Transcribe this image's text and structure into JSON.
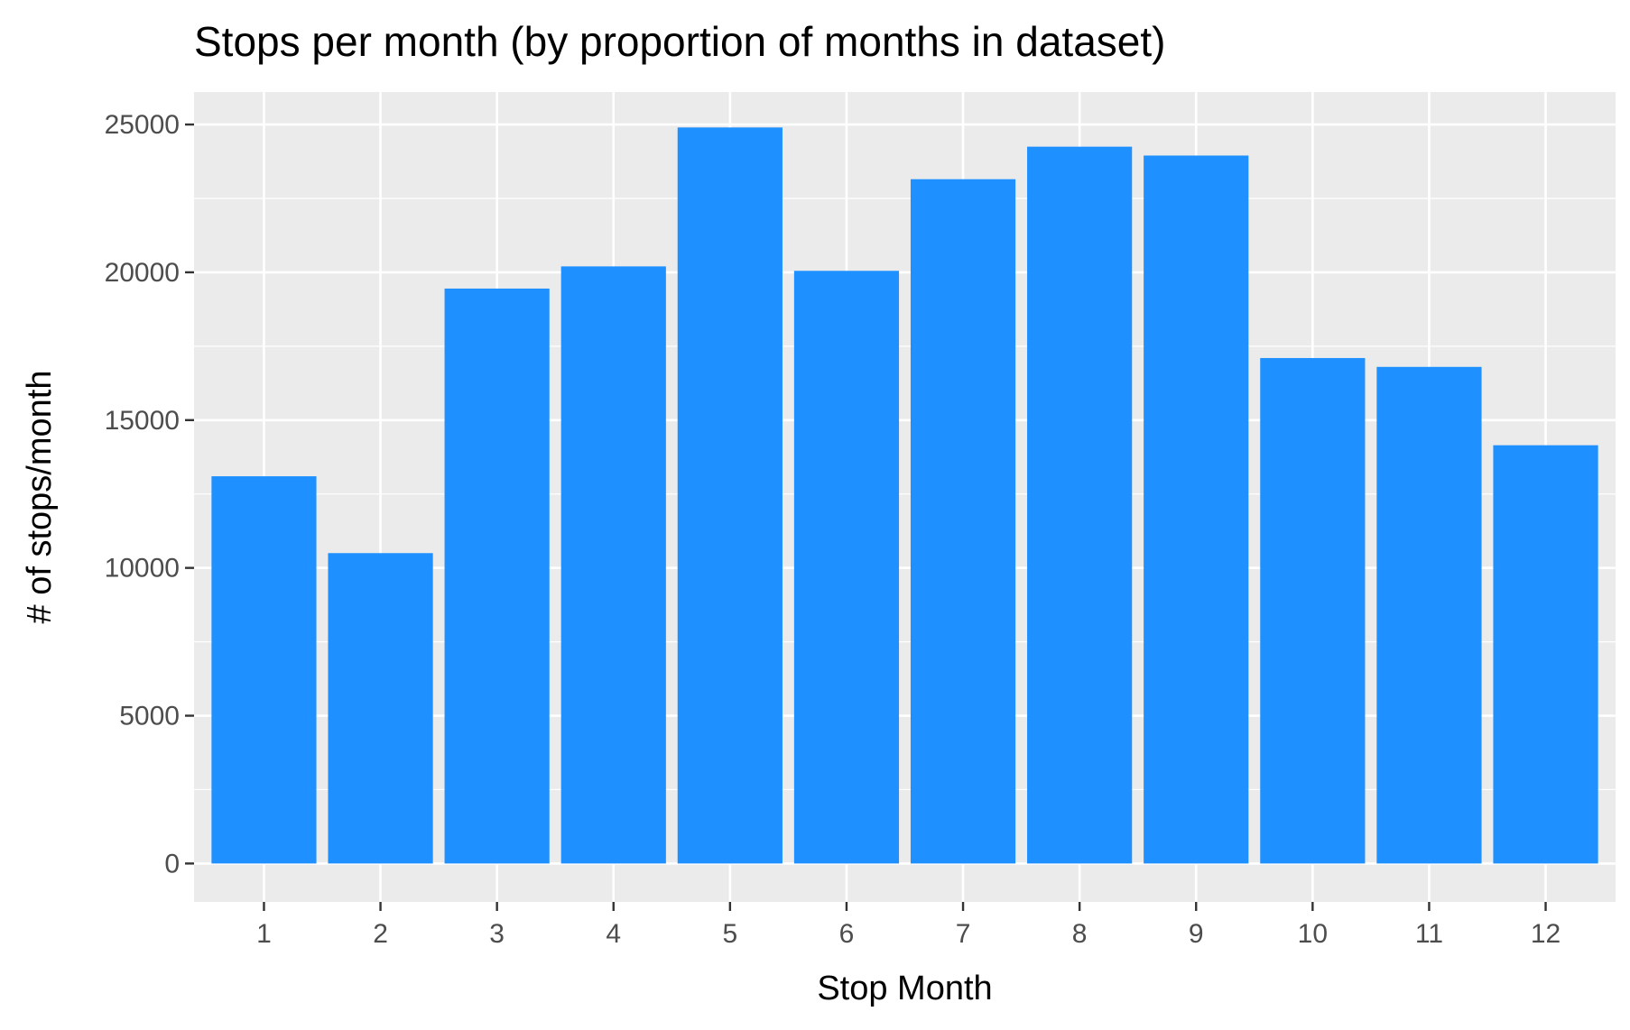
{
  "chart_data": {
    "type": "bar",
    "title": "Stops per month (by proportion of months in dataset)",
    "xlabel": "Stop Month",
    "ylabel": "# of stops/month",
    "categories": [
      "1",
      "2",
      "3",
      "4",
      "5",
      "6",
      "7",
      "8",
      "9",
      "10",
      "11",
      "12"
    ],
    "values": [
      13100,
      10500,
      19450,
      20200,
      24900,
      20050,
      23150,
      24250,
      23950,
      17100,
      16800,
      14150
    ],
    "yticks": [
      "0",
      "5000",
      "10000",
      "15000",
      "20000",
      "25000"
    ],
    "ylim": [
      -1300,
      26100
    ],
    "grid": true,
    "legend": "none",
    "colors": {
      "bar": "#1E90FF",
      "panel": "#EBEBEB",
      "grid": "#FFFFFF",
      "tick_text": "#4D4D4D",
      "tick_mark": "#333333"
    }
  }
}
